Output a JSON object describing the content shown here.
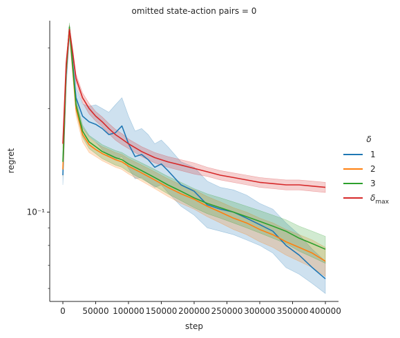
{
  "chart_data": {
    "type": "line",
    "title": "omitted state-action pairs = 0",
    "xlabel": "step",
    "ylabel": "regret",
    "xscale": "linear",
    "yscale": "log",
    "xlim": [
      -20000,
      420000
    ],
    "ylim": [
      0.055,
      0.36
    ],
    "x_ticks": [
      0,
      50000,
      100000,
      150000,
      200000,
      250000,
      300000,
      350000,
      400000
    ],
    "x_tick_labels": [
      "0",
      "50000",
      "100000",
      "150000",
      "200000",
      "250000",
      "300000",
      "350000",
      "400000"
    ],
    "y_ticks": [
      0.1
    ],
    "y_tick_labels": [
      "10⁻¹"
    ],
    "grid": false,
    "legend": {
      "title": "δ",
      "placement": "right",
      "entries": [
        "1",
        "2",
        "3",
        "δmax"
      ]
    },
    "series": [
      {
        "name": "1",
        "color": "#1f77b4",
        "band": true,
        "x": [
          0,
          5000,
          10000,
          15000,
          20000,
          30000,
          40000,
          50000,
          60000,
          70000,
          80000,
          90000,
          100000,
          110000,
          120000,
          130000,
          140000,
          150000,
          160000,
          180000,
          200000,
          220000,
          240000,
          260000,
          280000,
          300000,
          320000,
          340000,
          360000,
          380000,
          400000
        ],
        "values": [
          0.128,
          0.25,
          0.34,
          0.27,
          0.215,
          0.19,
          0.183,
          0.18,
          0.175,
          0.168,
          0.17,
          0.178,
          0.158,
          0.145,
          0.147,
          0.142,
          0.135,
          0.138,
          0.132,
          0.12,
          0.115,
          0.105,
          0.102,
          0.1,
          0.096,
          0.092,
          0.088,
          0.08,
          0.075,
          0.069,
          0.064
        ],
        "lower": [
          0.12,
          0.23,
          0.32,
          0.25,
          0.2,
          0.176,
          0.166,
          0.16,
          0.152,
          0.145,
          0.142,
          0.145,
          0.134,
          0.125,
          0.126,
          0.122,
          0.118,
          0.12,
          0.114,
          0.104,
          0.098,
          0.09,
          0.088,
          0.086,
          0.083,
          0.08,
          0.076,
          0.069,
          0.066,
          0.062,
          0.058
        ],
        "upper": [
          0.138,
          0.27,
          0.35,
          0.29,
          0.232,
          0.206,
          0.203,
          0.205,
          0.2,
          0.195,
          0.205,
          0.215,
          0.19,
          0.172,
          0.175,
          0.168,
          0.158,
          0.162,
          0.155,
          0.14,
          0.135,
          0.123,
          0.118,
          0.116,
          0.112,
          0.106,
          0.102,
          0.093,
          0.086,
          0.078,
          0.072
        ]
      },
      {
        "name": "2",
        "color": "#ff7f0e",
        "band": true,
        "x": [
          0,
          5000,
          10000,
          15000,
          20000,
          30000,
          40000,
          50000,
          60000,
          70000,
          80000,
          90000,
          100000,
          120000,
          140000,
          160000,
          180000,
          200000,
          220000,
          240000,
          260000,
          280000,
          300000,
          320000,
          340000,
          360000,
          380000,
          400000
        ],
        "values": [
          0.133,
          0.255,
          0.34,
          0.26,
          0.2,
          0.168,
          0.157,
          0.152,
          0.148,
          0.145,
          0.142,
          0.14,
          0.136,
          0.13,
          0.124,
          0.118,
          0.113,
          0.109,
          0.104,
          0.1,
          0.096,
          0.093,
          0.089,
          0.086,
          0.082,
          0.079,
          0.076,
          0.072
        ],
        "lower": [
          0.127,
          0.245,
          0.33,
          0.25,
          0.191,
          0.16,
          0.149,
          0.145,
          0.141,
          0.138,
          0.135,
          0.133,
          0.129,
          0.123,
          0.117,
          0.111,
          0.106,
          0.102,
          0.097,
          0.093,
          0.089,
          0.086,
          0.082,
          0.079,
          0.075,
          0.072,
          0.069,
          0.065
        ],
        "upper": [
          0.139,
          0.265,
          0.35,
          0.27,
          0.209,
          0.176,
          0.165,
          0.159,
          0.155,
          0.152,
          0.149,
          0.147,
          0.143,
          0.137,
          0.131,
          0.125,
          0.12,
          0.116,
          0.111,
          0.107,
          0.103,
          0.1,
          0.096,
          0.093,
          0.089,
          0.086,
          0.083,
          0.079
        ]
      },
      {
        "name": "3",
        "color": "#2ca02c",
        "band": true,
        "x": [
          0,
          5000,
          10000,
          15000,
          20000,
          30000,
          40000,
          50000,
          60000,
          70000,
          80000,
          90000,
          100000,
          120000,
          140000,
          160000,
          180000,
          200000,
          220000,
          240000,
          260000,
          280000,
          300000,
          320000,
          340000,
          360000,
          380000,
          400000
        ],
        "values": [
          0.14,
          0.26,
          0.345,
          0.265,
          0.205,
          0.172,
          0.16,
          0.155,
          0.15,
          0.147,
          0.144,
          0.142,
          0.138,
          0.132,
          0.126,
          0.12,
          0.115,
          0.11,
          0.106,
          0.103,
          0.1,
          0.097,
          0.094,
          0.091,
          0.088,
          0.084,
          0.081,
          0.078
        ],
        "lower": [
          0.134,
          0.25,
          0.335,
          0.255,
          0.197,
          0.165,
          0.153,
          0.148,
          0.143,
          0.14,
          0.137,
          0.135,
          0.131,
          0.125,
          0.119,
          0.113,
          0.108,
          0.103,
          0.099,
          0.096,
          0.093,
          0.09,
          0.087,
          0.084,
          0.081,
          0.077,
          0.074,
          0.071
        ],
        "upper": [
          0.146,
          0.27,
          0.355,
          0.275,
          0.213,
          0.179,
          0.167,
          0.162,
          0.157,
          0.154,
          0.151,
          0.149,
          0.145,
          0.139,
          0.133,
          0.127,
          0.122,
          0.117,
          0.113,
          0.11,
          0.107,
          0.104,
          0.101,
          0.098,
          0.095,
          0.091,
          0.088,
          0.085
        ]
      },
      {
        "name": "δmax",
        "color": "#d62728",
        "band": true,
        "x": [
          0,
          5000,
          10000,
          15000,
          20000,
          30000,
          40000,
          50000,
          60000,
          70000,
          80000,
          90000,
          100000,
          120000,
          140000,
          160000,
          180000,
          200000,
          220000,
          240000,
          260000,
          280000,
          300000,
          320000,
          340000,
          360000,
          380000,
          400000
        ],
        "values": [
          0.158,
          0.27,
          0.34,
          0.29,
          0.245,
          0.215,
          0.2,
          0.19,
          0.183,
          0.175,
          0.168,
          0.163,
          0.158,
          0.15,
          0.144,
          0.14,
          0.137,
          0.134,
          0.131,
          0.128,
          0.126,
          0.124,
          0.122,
          0.121,
          0.12,
          0.12,
          0.119,
          0.118
        ],
        "lower": [
          0.153,
          0.262,
          0.332,
          0.282,
          0.238,
          0.208,
          0.193,
          0.184,
          0.177,
          0.169,
          0.162,
          0.157,
          0.153,
          0.145,
          0.139,
          0.135,
          0.132,
          0.129,
          0.127,
          0.124,
          0.122,
          0.12,
          0.118,
          0.117,
          0.116,
          0.116,
          0.115,
          0.114
        ],
        "upper": [
          0.163,
          0.278,
          0.348,
          0.298,
          0.252,
          0.222,
          0.207,
          0.196,
          0.189,
          0.181,
          0.174,
          0.169,
          0.163,
          0.155,
          0.149,
          0.145,
          0.142,
          0.139,
          0.135,
          0.132,
          0.13,
          0.128,
          0.126,
          0.125,
          0.124,
          0.124,
          0.123,
          0.122
        ]
      }
    ]
  }
}
